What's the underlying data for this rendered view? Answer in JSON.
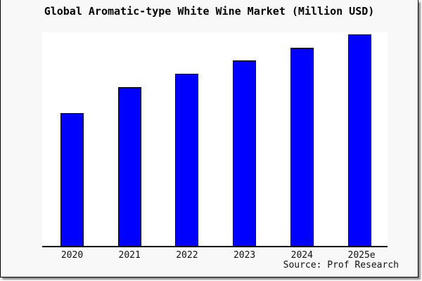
{
  "title": "Global Aromatic-type White Wine Market (Million USD)",
  "source_note": "Source: Prof Research",
  "colors": {
    "bar_fill": "#0000ff",
    "bar_border": "#000000",
    "axis": "#000000",
    "frame_background": "#f8f8f8",
    "plot_background": "#ffffff"
  },
  "chart_data": {
    "type": "bar",
    "title": "Global Aromatic-type White Wine Market (Million USD)",
    "categories": [
      "2020",
      "2021",
      "2022",
      "2023",
      "2024",
      "2025e"
    ],
    "values": [
      188,
      225,
      244,
      263,
      281,
      300
    ],
    "xlabel": "",
    "ylabel": "",
    "ylim": [
      0,
      304
    ],
    "y_axis_visible": false,
    "grid": false,
    "legend": "none",
    "note_text": "Source: Prof Research"
  }
}
